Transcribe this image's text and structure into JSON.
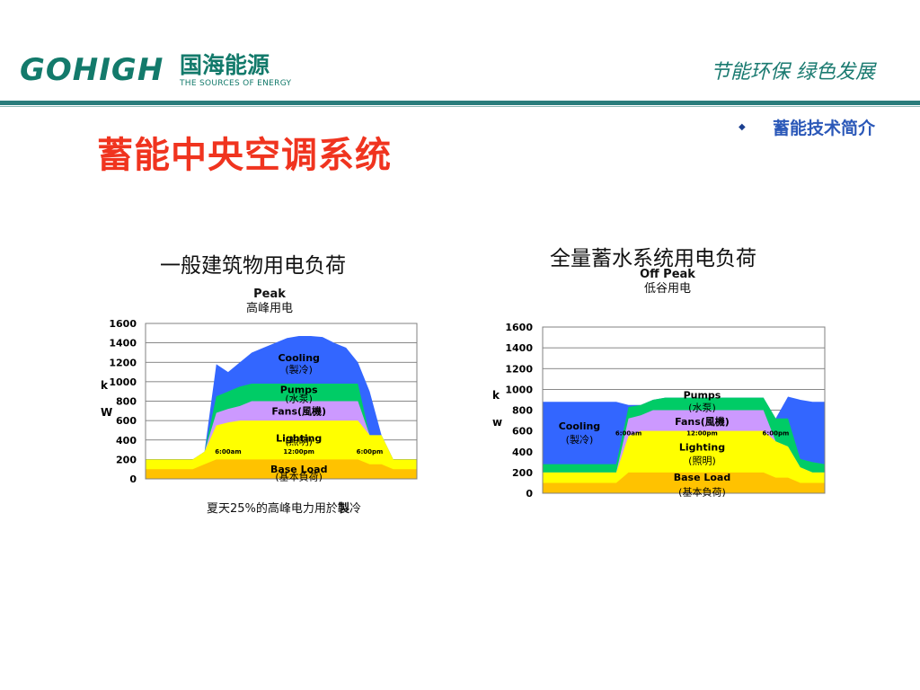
{
  "brand": {
    "logo_word": "GOHIGH",
    "logo_cn": "国海能源",
    "logo_en": "THE SOURCES OF ENERGY"
  },
  "slogan": "节能环保 绿色发展",
  "section": "蓄能技术简介",
  "title": "蓄能中央空调系统",
  "colors": {
    "base": "#ffc200",
    "lighting": "#ffff00",
    "fans": "#cc99ff",
    "pumps": "#00cc66",
    "cooling": "#3366ff",
    "title": "#f0341f",
    "brand": "#137a6b"
  },
  "chart_data": [
    {
      "type": "area",
      "title": "一般建筑物用电负荷",
      "annotation": {
        "label": "Peak",
        "sublabel": "高峰用电"
      },
      "ylabel": "kW",
      "ylabel_chars": [
        "k",
        "W"
      ],
      "ylim": [
        0,
        1600
      ],
      "yticks": [
        "0",
        "200",
        "400",
        "600",
        "800",
        "1000",
        "1200",
        "1400",
        "1600"
      ],
      "x": [
        0,
        1,
        2,
        3,
        4,
        5,
        6,
        7,
        8,
        9,
        10,
        11,
        12,
        13,
        14,
        15,
        16,
        17,
        18,
        19,
        20,
        21,
        22,
        23
      ],
      "time_labels": [
        {
          "x": 7,
          "text": "6:00am"
        },
        {
          "x": 13,
          "text": "12:00pm"
        },
        {
          "x": 19,
          "text": "6:00pm"
        }
      ],
      "series": [
        {
          "name": "Base Load",
          "label_cn": "(基本負荷)",
          "color": "#ffc200",
          "values": [
            100,
            100,
            100,
            100,
            100,
            150,
            200,
            200,
            200,
            200,
            200,
            200,
            200,
            200,
            200,
            200,
            200,
            200,
            200,
            150,
            150,
            100,
            100,
            100
          ]
        },
        {
          "name": "Lighting",
          "label_cn": "(照明)",
          "color": "#ffff00",
          "values": [
            200,
            200,
            200,
            200,
            200,
            280,
            550,
            580,
            600,
            600,
            600,
            600,
            600,
            600,
            600,
            600,
            600,
            600,
            600,
            450,
            450,
            200,
            200,
            200
          ]
        },
        {
          "name": "Fans",
          "label_cn": "(風機)",
          "color": "#cc99ff",
          "values": [
            200,
            200,
            200,
            200,
            200,
            280,
            680,
            720,
            750,
            800,
            800,
            800,
            800,
            800,
            800,
            800,
            800,
            800,
            800,
            450,
            450,
            200,
            200,
            200
          ]
        },
        {
          "name": "Pumps",
          "label_cn": "(水泵)",
          "color": "#00cc66",
          "values": [
            200,
            200,
            200,
            200,
            200,
            280,
            850,
            900,
            950,
            980,
            980,
            980,
            980,
            980,
            980,
            980,
            980,
            980,
            980,
            450,
            450,
            200,
            200,
            200
          ]
        },
        {
          "name": "Cooling",
          "label_cn": "(製冷)",
          "color": "#3366ff",
          "values": [
            200,
            200,
            200,
            200,
            200,
            280,
            1180,
            1100,
            1200,
            1300,
            1350,
            1400,
            1450,
            1470,
            1470,
            1460,
            1400,
            1350,
            1200,
            900,
            450,
            200,
            200,
            200
          ]
        }
      ],
      "caption_pre": "夏天",
      "caption_pct": "25%",
      "caption_mid": "的高峰电力用於",
      "caption_bold": "製",
      "caption_post": "冷"
    },
    {
      "type": "area",
      "title": "全量蓄水系统用电负荷",
      "annotation": {
        "label": "Off Peak",
        "sublabel": "低谷用电"
      },
      "ylabel": "kw",
      "ylabel_chars": [
        "k",
        "w"
      ],
      "ylim": [
        0,
        1600
      ],
      "yticks": [
        "0",
        "200",
        "400",
        "600",
        "800",
        "1000",
        "1200",
        "1400",
        "1600"
      ],
      "x": [
        0,
        1,
        2,
        3,
        4,
        5,
        6,
        7,
        8,
        9,
        10,
        11,
        12,
        13,
        14,
        15,
        16,
        17,
        18,
        19,
        20,
        21,
        22,
        23
      ],
      "time_labels": [
        {
          "x": 7,
          "text": "6:00am"
        },
        {
          "x": 13,
          "text": "12:00pm"
        },
        {
          "x": 19,
          "text": "6:00pm"
        }
      ],
      "series": [
        {
          "name": "Base Load",
          "label_cn": "(基本負荷)",
          "color": "#ffc200",
          "values": [
            100,
            100,
            100,
            100,
            100,
            100,
            100,
            200,
            200,
            200,
            200,
            200,
            200,
            200,
            200,
            200,
            200,
            200,
            200,
            150,
            150,
            100,
            100,
            100
          ]
        },
        {
          "name": "Lighting",
          "label_cn": "(照明)",
          "color": "#ffff00",
          "values": [
            200,
            200,
            200,
            200,
            200,
            200,
            200,
            550,
            600,
            600,
            600,
            600,
            600,
            600,
            600,
            600,
            600,
            600,
            600,
            500,
            450,
            250,
            200,
            200
          ]
        },
        {
          "name": "Fans",
          "label_cn": "(風機)",
          "color": "#cc99ff",
          "values": [
            200,
            200,
            200,
            200,
            200,
            200,
            200,
            720,
            750,
            800,
            800,
            800,
            800,
            800,
            800,
            800,
            800,
            800,
            800,
            500,
            450,
            250,
            200,
            200
          ]
        },
        {
          "name": "Pumps",
          "label_cn": "(水泵)",
          "color": "#00cc66",
          "values": [
            280,
            280,
            280,
            280,
            280,
            280,
            280,
            830,
            850,
            900,
            920,
            920,
            920,
            920,
            920,
            920,
            920,
            920,
            920,
            720,
            720,
            330,
            300,
            280
          ]
        },
        {
          "name": "Cooling",
          "label_cn": "(製冷)",
          "color": "#3366ff",
          "values": [
            880,
            880,
            880,
            880,
            880,
            880,
            880,
            850,
            850,
            900,
            920,
            920,
            920,
            920,
            920,
            920,
            920,
            920,
            920,
            720,
            930,
            900,
            880,
            880
          ]
        }
      ]
    }
  ]
}
